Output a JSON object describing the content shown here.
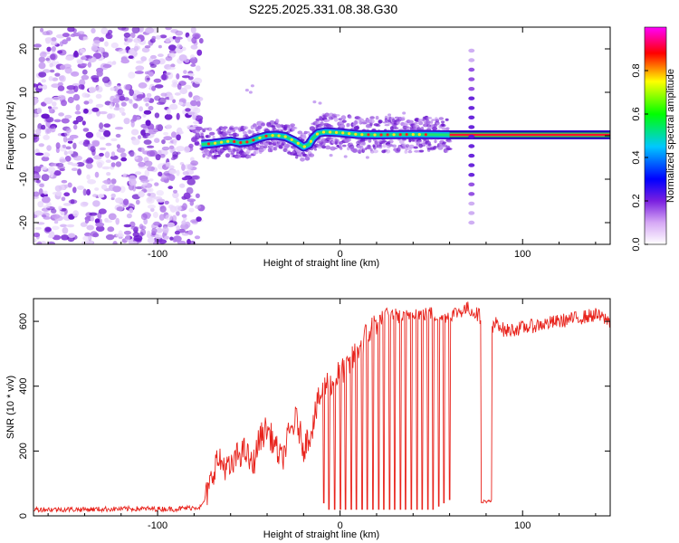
{
  "title": "S225.2025.331.08.38.G30",
  "chart_data": [
    {
      "type": "heatmap",
      "name": "spectrogram",
      "xlabel": "Height of straight line (km)",
      "ylabel": "Frequency (Hz)",
      "xlim": [
        -168,
        148
      ],
      "ylim": [
        -25,
        25
      ],
      "xticks": [
        -100,
        0,
        100
      ],
      "yticks": [
        -20,
        -10,
        0,
        10,
        20
      ],
      "noise_region_x": [
        -168,
        -76
      ],
      "trace": [
        {
          "x": -76,
          "y": -2.0
        },
        {
          "x": -70,
          "y": -1.8
        },
        {
          "x": -65,
          "y": -1.5
        },
        {
          "x": -60,
          "y": -1.2
        },
        {
          "x": -55,
          "y": -1.6
        },
        {
          "x": -50,
          "y": -1.4
        },
        {
          "x": -45,
          "y": -0.6
        },
        {
          "x": -40,
          "y": 0.0
        },
        {
          "x": -35,
          "y": 0.1
        },
        {
          "x": -30,
          "y": -0.2
        },
        {
          "x": -25,
          "y": -1.2
        },
        {
          "x": -20,
          "y": -2.6
        },
        {
          "x": -17,
          "y": -2.0
        },
        {
          "x": -15,
          "y": -0.6
        },
        {
          "x": -12,
          "y": 0.6
        },
        {
          "x": -8,
          "y": 0.9
        },
        {
          "x": 0,
          "y": 0.7
        },
        {
          "x": 10,
          "y": 0.3
        },
        {
          "x": 20,
          "y": 0.2
        },
        {
          "x": 40,
          "y": 0.3
        },
        {
          "x": 60,
          "y": 0.2
        },
        {
          "x": 80,
          "y": 0.2
        },
        {
          "x": 100,
          "y": 0.2
        },
        {
          "x": 120,
          "y": 0.2
        },
        {
          "x": 148,
          "y": 0.2
        }
      ],
      "spike_x": 72,
      "stray_points": [
        [
          -51,
          10.5
        ],
        [
          -49,
          10
        ],
        [
          -48,
          11.5
        ],
        [
          -14,
          7.8
        ],
        [
          -11,
          7.5
        ],
        [
          -5,
          -4.5
        ],
        [
          3,
          -4.8
        ],
        [
          15,
          -5
        ],
        [
          27,
          4.8
        ],
        [
          35,
          5.2
        ]
      ]
    },
    {
      "type": "line",
      "name": "snr",
      "xlabel": "Height of straight line (km)",
      "ylabel": "SNR (10 * v/v)",
      "xlim": [
        -168,
        148
      ],
      "ylim": [
        0,
        670
      ],
      "xticks": [
        -100,
        0,
        100
      ],
      "yticks": [
        0,
        200,
        400,
        600
      ],
      "color": "#e8221b",
      "series": [
        {
          "name": "SNR",
          "x": [
            -168,
            -140,
            -110,
            -90,
            -76,
            -72,
            -68,
            -64,
            -60,
            -56,
            -52,
            -48,
            -44,
            -40,
            -36,
            -32,
            -28,
            -24,
            -20,
            -16,
            -12,
            -8,
            -4,
            0,
            5,
            10,
            15,
            20,
            25,
            30,
            35,
            40,
            45,
            50,
            55,
            60,
            65,
            70,
            76,
            78,
            82,
            84,
            86,
            90,
            100,
            110,
            120,
            130,
            140,
            148
          ],
          "values": [
            20,
            20,
            22,
            21,
            28,
            80,
            170,
            160,
            140,
            190,
            200,
            150,
            240,
            270,
            220,
            170,
            250,
            300,
            210,
            260,
            350,
            410,
            400,
            450,
            460,
            520,
            560,
            600,
            620,
            620,
            610,
            630,
            620,
            625,
            610,
            620,
            630,
            640,
            620,
            600,
            560,
            580,
            600,
            570,
            580,
            590,
            600,
            610,
            620,
            600
          ]
        }
      ],
      "dropouts": [
        [
          -9,
          40
        ],
        [
          -6,
          20
        ],
        [
          -3,
          20
        ],
        [
          0,
          20
        ],
        [
          3,
          20
        ],
        [
          6,
          20
        ],
        [
          9,
          20
        ],
        [
          12,
          20
        ],
        [
          15,
          20
        ],
        [
          18,
          20
        ],
        [
          21,
          20
        ],
        [
          24,
          20
        ],
        [
          27,
          20
        ],
        [
          30,
          20
        ],
        [
          33,
          20
        ],
        [
          36,
          20
        ],
        [
          39,
          20
        ],
        [
          42,
          20
        ],
        [
          45,
          20
        ],
        [
          48,
          20
        ],
        [
          51,
          20
        ],
        [
          54,
          30
        ],
        [
          57,
          40
        ],
        [
          60,
          50
        ]
      ],
      "gap": {
        "x0": 77,
        "x1": 83,
        "value": 40
      }
    }
  ],
  "colorbar": {
    "label": "Normalized spectral amplitude",
    "ticks": [
      "0.0",
      "0.2",
      "0.4",
      "0.6",
      "0.8"
    ],
    "tick_values": [
      0.0,
      0.2,
      0.4,
      0.6,
      0.8
    ],
    "range": [
      0,
      1
    ],
    "colors": [
      "#ffffff",
      "#8a2be2",
      "#0000ff",
      "#00ffff",
      "#00ff00",
      "#ffff00",
      "#ff0000",
      "#ff00ff"
    ]
  }
}
